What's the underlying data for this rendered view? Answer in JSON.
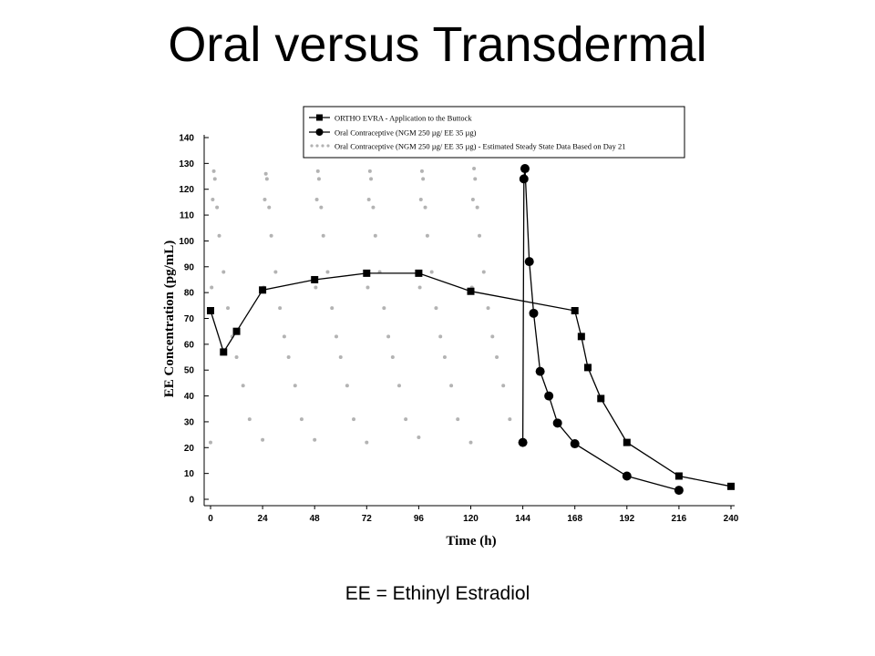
{
  "slide": {
    "title": "Oral versus Transdermal",
    "footnote": "EE = Ethinyl Estradiol"
  },
  "chart_data": {
    "type": "line",
    "xlabel": "Time (h)",
    "ylabel": "EE Concentration (pg/mL)",
    "xlim": [
      0,
      240
    ],
    "ylim": [
      0,
      140
    ],
    "xticks": [
      0,
      24,
      48,
      72,
      96,
      120,
      144,
      168,
      192,
      216,
      240
    ],
    "yticks": [
      0,
      10,
      20,
      30,
      40,
      50,
      60,
      70,
      80,
      90,
      100,
      110,
      120,
      130,
      140
    ],
    "grid": false,
    "legend_position": "top-right",
    "colors": {
      "main": "#000000",
      "steady_state": "#b3b3b3"
    },
    "series": [
      {
        "name": "ORTHO EVRA - Application to the Buttock",
        "marker": "square",
        "x": [
          0,
          6,
          12,
          24,
          48,
          72,
          96,
          120,
          168,
          171,
          174,
          180,
          192,
          216,
          240
        ],
        "y": [
          73,
          57,
          65,
          81,
          85,
          87.5,
          87.5,
          80.5,
          73,
          63,
          51,
          39,
          22,
          9,
          5
        ]
      },
      {
        "name": "Oral Contraceptive (NGM 250 µg/ EE 35 µg)",
        "marker": "circle",
        "x": [
          144,
          144.5,
          145,
          147,
          149,
          152,
          156,
          160,
          168,
          192,
          216
        ],
        "y": [
          22,
          124,
          128,
          92,
          72,
          49.5,
          40,
          29.5,
          21.5,
          9,
          3.5
        ]
      },
      {
        "name": "Oral Contraceptive (NGM 250 µg/ EE 35 µg) - Estimated Steady State Data Based on Day 21",
        "marker": "dots",
        "x": [
          0,
          0.5,
          1,
          1.5,
          2,
          3,
          4,
          6,
          8,
          10,
          12,
          15,
          18,
          24,
          24.5,
          25,
          25.5,
          26,
          27,
          28,
          30,
          32,
          34,
          36,
          39,
          42,
          48,
          48.5,
          49,
          49.5,
          50,
          51,
          52,
          54,
          56,
          58,
          60,
          63,
          66,
          72,
          72.5,
          73,
          73.5,
          74,
          75,
          76,
          78,
          80,
          82,
          84,
          87,
          90,
          96,
          96.5,
          97,
          97.5,
          98,
          99,
          100,
          102,
          104,
          106,
          108,
          111,
          114,
          120,
          120.5,
          121,
          121.5,
          122,
          123,
          124,
          126,
          128,
          130,
          132,
          135,
          138
        ],
        "y": [
          22,
          82,
          116,
          127,
          124,
          113,
          102,
          88,
          74,
          63,
          55,
          44,
          31,
          23,
          82,
          116,
          126,
          124,
          113,
          102,
          88,
          74,
          63,
          55,
          44,
          31,
          23,
          82,
          116,
          127,
          124,
          113,
          102,
          88,
          74,
          63,
          55,
          44,
          31,
          22,
          82,
          116,
          127,
          124,
          113,
          102,
          88,
          74,
          63,
          55,
          44,
          31,
          24,
          82,
          116,
          127,
          124,
          113,
          102,
          88,
          74,
          63,
          55,
          44,
          31,
          22,
          82,
          116,
          128,
          124,
          113,
          102,
          88,
          74,
          63,
          55,
          44,
          31
        ]
      }
    ]
  }
}
